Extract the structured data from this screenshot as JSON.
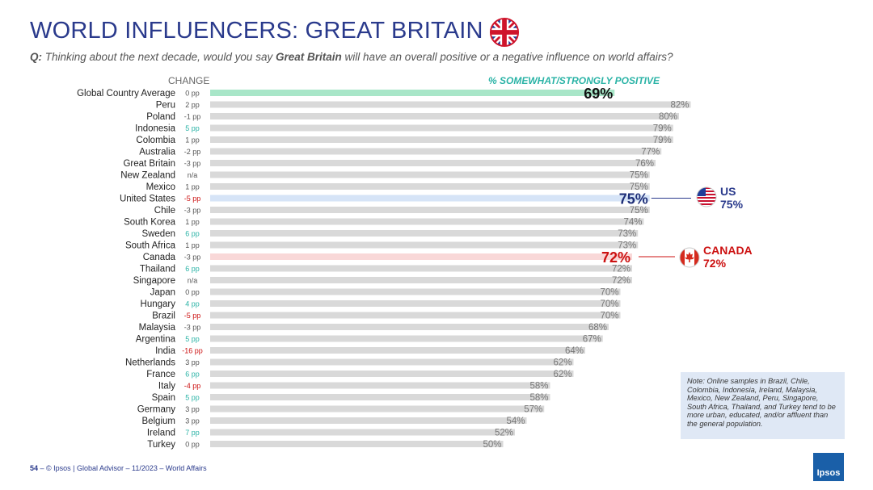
{
  "title": "WORLD INFLUENCERS: GREAT BRITAIN",
  "question": {
    "prefix": "Q:",
    "text_before": "Thinking about the next decade, would you say",
    "country": "Great Britain",
    "text_after": "will have an overall positive or a negative influence on world affairs?"
  },
  "colors": {
    "title": "#2a3a8c",
    "bar": "#d9d9d9",
    "global_bar": "#a8e6c8",
    "us_bar": "#d6e4f7",
    "canada_bar": "#f9d8d8",
    "positive_change": "#2ab3a6",
    "negative_change": "#cc1111",
    "neutral_change": "#555555"
  },
  "chart_data": {
    "type": "bar",
    "orientation": "horizontal",
    "change_header": "CHANGE",
    "value_header": "% SOMEWHAT/STRONGLY POSITIVE",
    "xlim": [
      0,
      100
    ],
    "grid": false,
    "categories": [
      "Global Country Average",
      "Peru",
      "Poland",
      "Indonesia",
      "Colombia",
      "Australia",
      "Great Britain",
      "New Zealand",
      "Mexico",
      "United States",
      "Chile",
      "South Korea",
      "Sweden",
      "South Africa",
      "Canada",
      "Thailand",
      "Singapore",
      "Japan",
      "Hungary",
      "Brazil",
      "Malaysia",
      "Argentina",
      "India",
      "Netherlands",
      "France",
      "Italy",
      "Spain",
      "Germany",
      "Belgium",
      "Ireland",
      "Turkey"
    ],
    "values": [
      69,
      82,
      80,
      79,
      79,
      77,
      76,
      75,
      75,
      75,
      75,
      74,
      73,
      73,
      72,
      72,
      72,
      70,
      70,
      70,
      68,
      67,
      64,
      62,
      62,
      58,
      58,
      57,
      54,
      52,
      50
    ],
    "value_labels": [
      "69%",
      "82%",
      "80%",
      "79%",
      "79%",
      "77%",
      "76%",
      "75%",
      "75%",
      "75%",
      "75%",
      "74%",
      "73%",
      "73%",
      "72%",
      "72%",
      "72%",
      "70%",
      "70%",
      "70%",
      "68%",
      "67%",
      "64%",
      "62%",
      "62%",
      "58%",
      "58%",
      "57%",
      "54%",
      "52%",
      "50%"
    ],
    "changes": [
      "0 pp",
      "2 pp",
      "-1 pp",
      "5 pp",
      "1 pp",
      "-2 pp",
      "-3 pp",
      "n/a",
      "1 pp",
      "-5 pp",
      "-3 pp",
      "1 pp",
      "6 pp",
      "1 pp",
      "-3 pp",
      "6 pp",
      "n/a",
      "0 pp",
      "4 pp",
      "-5 pp",
      "-3 pp",
      "5 pp",
      "-16 pp",
      "3 pp",
      "6 pp",
      "-4 pp",
      "5 pp",
      "3 pp",
      "3 pp",
      "7 pp",
      "0 pp"
    ],
    "change_direction": [
      "neutral",
      "neutral",
      "neutral",
      "positive",
      "neutral",
      "neutral",
      "neutral",
      "neutral",
      "neutral",
      "negative",
      "neutral",
      "neutral",
      "positive",
      "neutral",
      "neutral",
      "positive",
      "neutral",
      "neutral",
      "positive",
      "negative",
      "neutral",
      "positive",
      "negative",
      "neutral",
      "positive",
      "negative",
      "positive",
      "neutral",
      "neutral",
      "positive",
      "neutral"
    ],
    "highlights": {
      "Global Country Average": "global",
      "United States": "us",
      "Canada": "canada"
    },
    "callouts": [
      {
        "category": "United States",
        "label": "US",
        "value": "75%"
      },
      {
        "category": "Canada",
        "label": "CANADA",
        "value": "72%"
      }
    ]
  },
  "note": "Note: Online samples in Brazil, Chile, Colombia, Indonesia, Ireland, Malaysia, Mexico, New Zealand, Peru, Singapore, South Africa, Thailand, and Turkey tend to be more urban, educated, and/or affluent than the general population.",
  "footer": {
    "page": "54",
    "text": "– © Ipsos | Global Advisor – 11/2023 – World Affairs"
  },
  "logo_text": "Ipsos",
  "icons": {
    "title_flag": "uk-flag-icon",
    "us_flag": "us-flag-icon",
    "canada_flag": "canada-flag-icon"
  }
}
